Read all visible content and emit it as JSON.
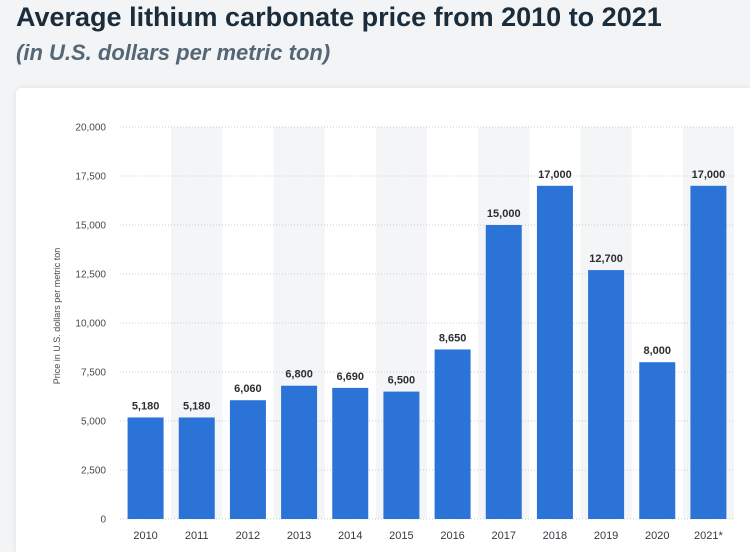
{
  "header": {
    "title": "Average lithium carbonate price from 2010 to 2021",
    "subtitle": "(in U.S. dollars per metric ton)"
  },
  "chart_data": {
    "type": "bar",
    "categories": [
      "2010",
      "2011",
      "2012",
      "2013",
      "2014",
      "2015",
      "2016",
      "2017",
      "2018",
      "2019",
      "2020",
      "2021*"
    ],
    "values": [
      5180,
      5180,
      6060,
      6800,
      6690,
      6500,
      8650,
      15000,
      17000,
      12700,
      8000,
      17000
    ],
    "value_labels": [
      "5,180",
      "5,180",
      "6,060",
      "6,800",
      "6,690",
      "6,500",
      "8,650",
      "15,000",
      "17,000",
      "12,700",
      "8,000",
      "17,000"
    ],
    "title": "Average lithium carbonate price from 2010 to 2021",
    "subtitle": "(in U.S. dollars per metric ton)",
    "xlabel": "",
    "ylabel": "Price in U.S. dollars per metric ton",
    "ylim": [
      0,
      20000
    ],
    "yticks": [
      0,
      2500,
      5000,
      7500,
      10000,
      12500,
      15000,
      17500,
      20000
    ],
    "ytick_labels": [
      "0",
      "2,500",
      "5,000",
      "7,500",
      "10,000",
      "12,500",
      "15,000",
      "17,500",
      "20,000"
    ],
    "grid": true,
    "legend": "none",
    "colors": {
      "bar": "#2c73d8",
      "band": "#f4f5f7",
      "grid": "#c8ccd1"
    }
  }
}
